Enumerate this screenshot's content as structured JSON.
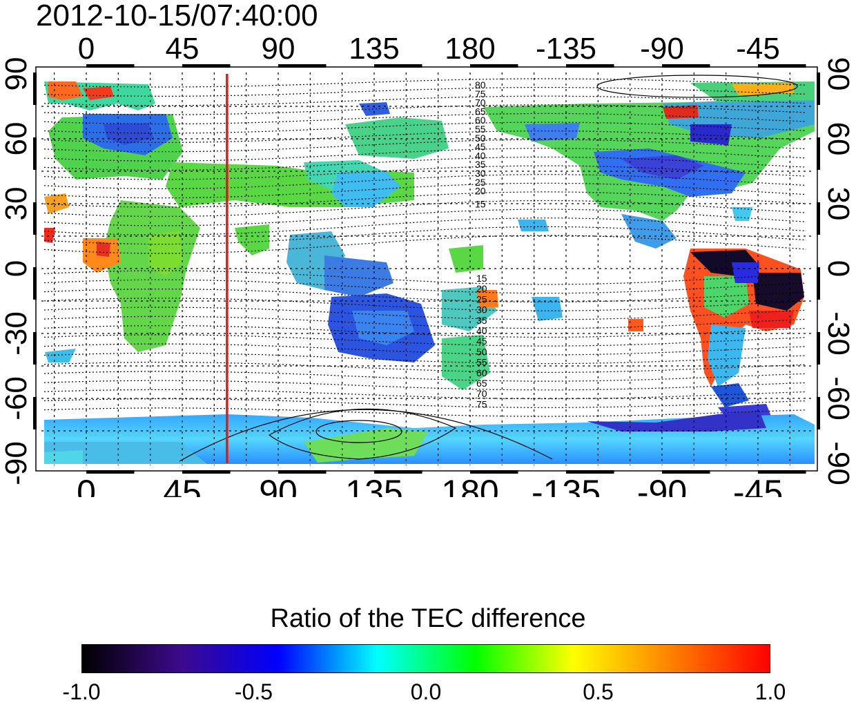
{
  "title": "2012-10-15/07:40:00",
  "map": {
    "lon_ticks": [
      "0",
      "45",
      "90",
      "135",
      "180",
      "-135",
      "-90",
      "-45"
    ],
    "lat_ticks": [
      "90",
      "60",
      "30",
      "0",
      "-30",
      "-60",
      "-90"
    ],
    "marker_line_lon": 66,
    "contour_labels_north": [
      "80",
      "75",
      "70",
      "65",
      "60",
      "55",
      "50",
      "45",
      "40",
      "35",
      "30",
      "25",
      "20",
      "15"
    ],
    "contour_labels_south": [
      "15",
      "20",
      "25",
      "30",
      "35",
      "40",
      "45",
      "50",
      "55",
      "60",
      "65",
      "70",
      "75"
    ],
    "marker_color": "#d42020"
  },
  "colorbar": {
    "title": "Ratio of the TEC difference",
    "tick_labels": [
      "-1.0",
      "-0.5",
      "0.0",
      "0.5",
      "1.0"
    ],
    "range": [
      -1.0,
      1.0
    ],
    "colors": [
      "#000000",
      "#3c0a8c",
      "#0000ff",
      "#00ffff",
      "#00ff00",
      "#ffff00",
      "#ff8000",
      "#ff0000"
    ]
  }
}
